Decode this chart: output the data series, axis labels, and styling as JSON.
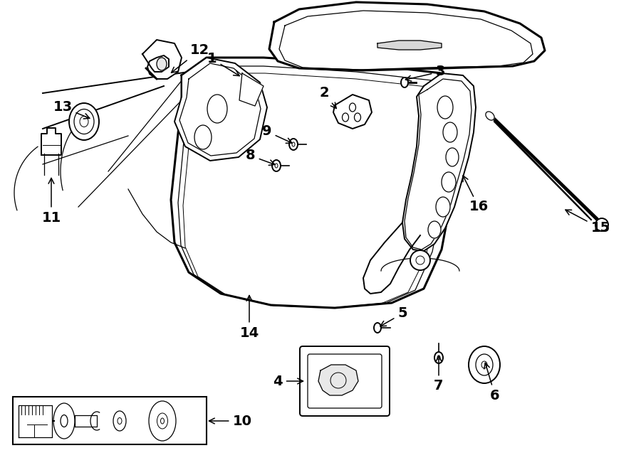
{
  "background_color": "#ffffff",
  "line_color": "#000000",
  "figsize": [
    9.0,
    6.61
  ],
  "dpi": 100,
  "label_fontsize": 14,
  "label_fontweight": "bold"
}
